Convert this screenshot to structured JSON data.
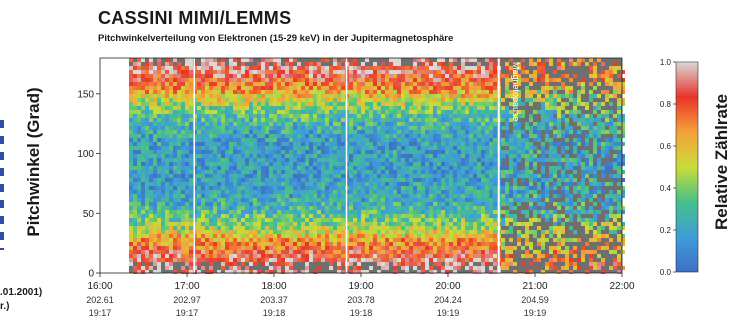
{
  "chart_data": {
    "type": "heatmap",
    "title": "CASSINI MIMI/LEMMS",
    "subtitle": "Pitchwinkelverteilung von Elektronen (15-29 keV) in der Jupitermagnetosphäre",
    "ylabel": "Pitchwinkel (Grad)",
    "ylim": [
      0,
      180
    ],
    "yticks": [
      "0",
      "50",
      "100",
      "150"
    ],
    "xlim": [
      "16:00",
      "22:00"
    ],
    "x_ticks": [
      {
        "time": "16:00",
        "doy": "202.61",
        "time2": "19:17"
      },
      {
        "time": "17:00",
        "doy": "202.97",
        "time2": "19:17"
      },
      {
        "time": "18:00",
        "doy": "203.37",
        "time2": "19:18"
      },
      {
        "time": "19:00",
        "doy": "203.78",
        "time2": "19:18"
      },
      {
        "time": "20:00",
        "doy": "204.24",
        "time2": "19:19"
      },
      {
        "time": "21:00",
        "doy": "204.59",
        "time2": "19:19"
      },
      {
        "time": "22:00",
        "doy": "",
        "time2": ""
      }
    ],
    "left_labels": [
      ".01.2001)",
      "r.)"
    ],
    "annotation": "Magnetopause",
    "colorbar": {
      "label": "Relative Zählrate",
      "range": [
        0,
        1
      ],
      "ticks": [
        "0.0",
        "0.2",
        "0.4",
        "0.6",
        "0.8",
        "1.0"
      ],
      "colors": [
        "#3e6fc4",
        "#3f9ed8",
        "#46c08a",
        "#c9dc3a",
        "#f4a13a",
        "#e8352a",
        "#d9d9d9"
      ]
    },
    "data_gap": {
      "from": "16:00",
      "to": "16:20"
    },
    "vertical_lines": [
      "17:05",
      "18:50",
      "20:35"
    ],
    "description_values": {
      "pattern": "high relative count rates near 0° and 180° pitch angle, low (blue) near 90°",
      "post_magnetopause": "patchy, reduced coverage after 20:35"
    }
  }
}
